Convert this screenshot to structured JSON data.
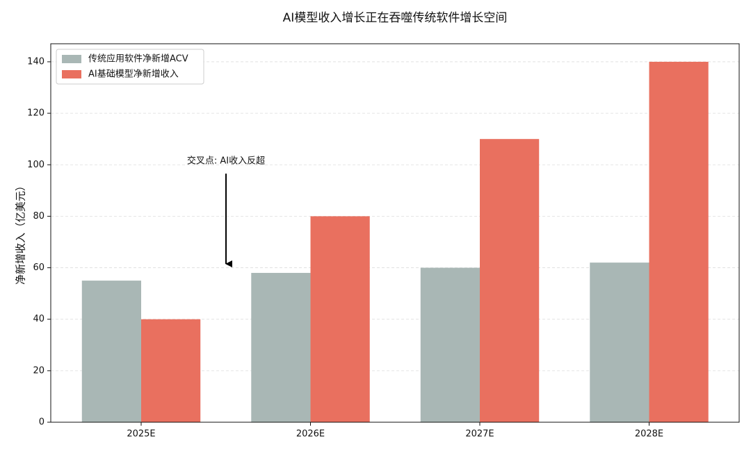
{
  "chart_data": {
    "type": "bar",
    "title": "AI模型收入增长正在吞噬传统软件增长空间",
    "ylabel": "净新增收入（亿美元）",
    "categories": [
      "2025E",
      "2026E",
      "2027E",
      "2028E"
    ],
    "series": [
      {
        "name": "传统应用软件净新增ACV",
        "color": "#a9b7b5",
        "values": [
          55,
          58,
          60,
          62
        ]
      },
      {
        "name": "AI基础模型净新增收入",
        "color": "#e9705f",
        "values": [
          40,
          80,
          110,
          140
        ]
      }
    ],
    "annotation": "交叉点: AI收入反超",
    "ylim": [
      0,
      147
    ],
    "yticks": [
      0,
      20,
      40,
      60,
      80,
      100,
      120,
      140
    ],
    "grid": true,
    "legend": "upper left"
  }
}
